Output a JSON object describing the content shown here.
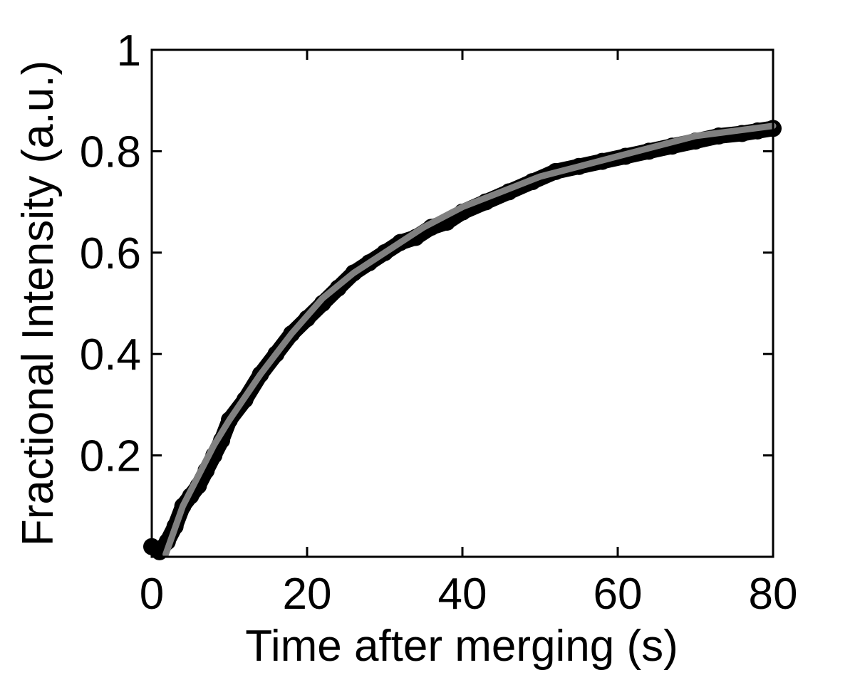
{
  "chart_data": {
    "type": "scatter",
    "xlabel": "Time after merging (s)",
    "ylabel": "Fractional Intensity (a.u.)",
    "xlim": [
      0,
      80
    ],
    "ylim": [
      0,
      1
    ],
    "xticks": [
      0,
      20,
      40,
      60,
      80
    ],
    "xtick_labels": [
      "0",
      "20",
      "40",
      "60",
      "80"
    ],
    "yticks": [
      0.2,
      0.4,
      0.6,
      0.8,
      1
    ],
    "ytick_labels": [
      "0.2",
      "0.4",
      "0.6",
      "0.8",
      "1"
    ],
    "grid": false,
    "legend": "none",
    "series": [
      {
        "kind": "points",
        "color": "#000000",
        "x": [
          0,
          1,
          2,
          3,
          4,
          5,
          6,
          7,
          8,
          9,
          10,
          12,
          14,
          16,
          18,
          20,
          22,
          24,
          26,
          28,
          30,
          32,
          34,
          36,
          38,
          40,
          43,
          46,
          49,
          52,
          55,
          58,
          61,
          64,
          67,
          70,
          73,
          76,
          78,
          80
        ],
        "y": [
          0.02,
          0.01,
          0.03,
          0.06,
          0.1,
          0.12,
          0.14,
          0.17,
          0.2,
          0.23,
          0.27,
          0.31,
          0.36,
          0.4,
          0.44,
          0.47,
          0.5,
          0.53,
          0.56,
          0.58,
          0.6,
          0.62,
          0.63,
          0.65,
          0.66,
          0.68,
          0.7,
          0.72,
          0.74,
          0.76,
          0.77,
          0.78,
          0.79,
          0.8,
          0.81,
          0.82,
          0.83,
          0.835,
          0.84,
          0.845
        ]
      },
      {
        "kind": "fit",
        "color": "#808080",
        "x": [
          1.8,
          4,
          6,
          8,
          10,
          14,
          18,
          22,
          26,
          30,
          35,
          40,
          45,
          50,
          55,
          60,
          65,
          70,
          75,
          80
        ],
        "y": [
          0.005,
          0.1,
          0.16,
          0.22,
          0.27,
          0.36,
          0.44,
          0.51,
          0.56,
          0.6,
          0.65,
          0.69,
          0.72,
          0.75,
          0.77,
          0.79,
          0.81,
          0.83,
          0.84,
          0.85
        ]
      }
    ]
  }
}
